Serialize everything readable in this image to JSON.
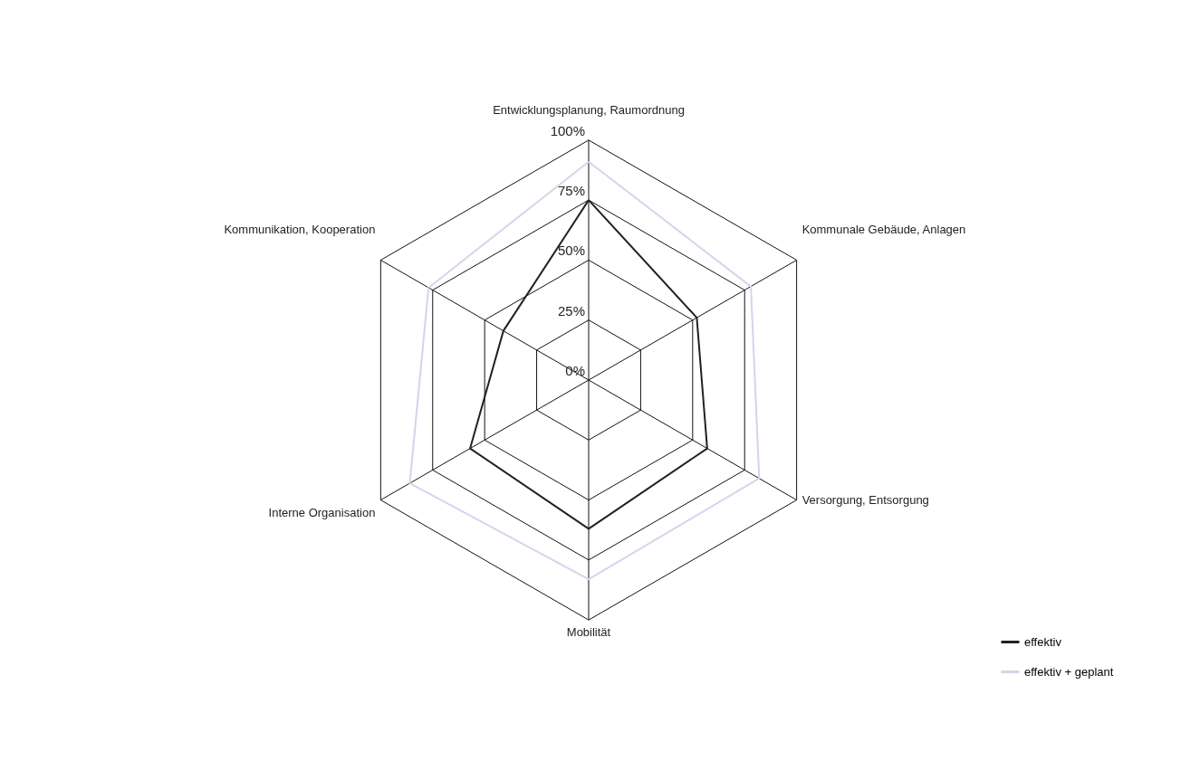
{
  "chart_data": {
    "type": "radar",
    "categories": [
      "Entwicklungsplanung, Raumordnung",
      "Kommunale Gebäude, Anlagen",
      "Versorgung, Entsorgung",
      "Mobilität",
      "Interne Organisation",
      "Kommunikation, Kooperation"
    ],
    "series": [
      {
        "name": "effektiv",
        "color": "#222222",
        "values": [
          75,
          52,
          57,
          62,
          57,
          41
        ]
      },
      {
        "name": "effektiv + geplant",
        "color": "#d4d4ec",
        "values": [
          91,
          78,
          82,
          83,
          86,
          77
        ]
      }
    ],
    "ylim": [
      0,
      100
    ],
    "yticks": [
      {
        "value": 0,
        "label": "0%"
      },
      {
        "value": 25,
        "label": "25%"
      },
      {
        "value": 50,
        "label": "50%"
      },
      {
        "value": 75,
        "label": "75%"
      },
      {
        "value": 100,
        "label": "100%"
      }
    ],
    "grid": true,
    "legend": "bottom right",
    "marker": "none",
    "line_style": "solid"
  }
}
